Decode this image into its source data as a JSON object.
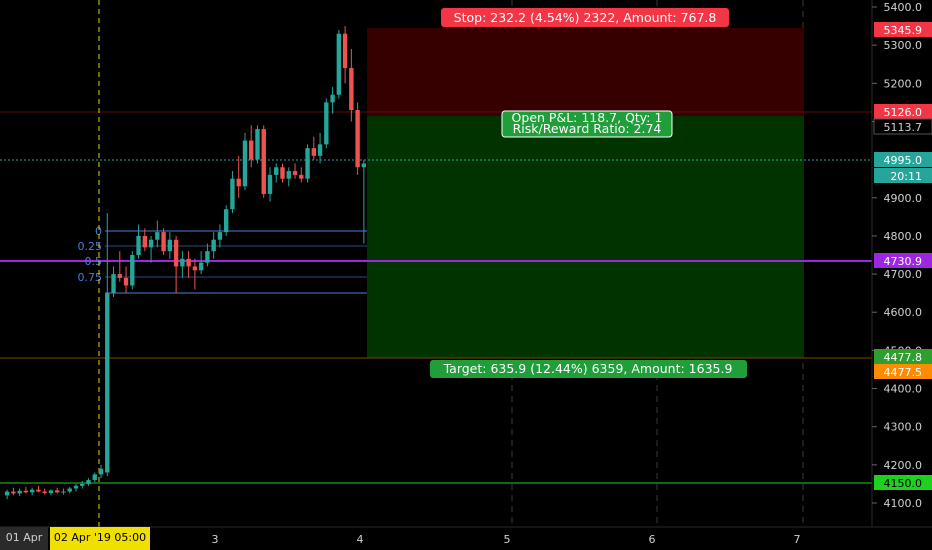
{
  "price_axis": {
    "ticks": [
      "5400.0",
      "5300.0",
      "5200.0",
      "5100.0",
      "4900.0",
      "4800.0",
      "4700.0",
      "4600.0",
      "4500.0",
      "4400.0",
      "4300.0",
      "4200.0",
      "4100.0"
    ],
    "tags": [
      {
        "label": "5345.9",
        "color": "#f23645",
        "text": "#ffffff"
      },
      {
        "label": "5126.0",
        "color": "#f23645",
        "text": "#ffffff"
      },
      {
        "label": "5113.7",
        "color": "#000000",
        "text": "#d0d0d0"
      },
      {
        "label": "4995.0",
        "color": "#26a69a",
        "text": "#ffffff"
      },
      {
        "label": "20:11",
        "color": "#26a69a",
        "text": "#ffffff"
      },
      {
        "label": "4730.9",
        "color": "#9c27e0",
        "text": "#ffffff"
      },
      {
        "label": "4477.8",
        "color": "#2e9e2e",
        "text": "#ffffff"
      },
      {
        "label": "4477.5",
        "color": "#ff8c00",
        "text": "#ffffff"
      },
      {
        "label": "4150.0",
        "color": "#1fd11f",
        "text": "#000000"
      }
    ]
  },
  "time_axis": {
    "ticks": [
      "3",
      "4",
      "5",
      "6",
      "7"
    ],
    "left_label": "01 Apr",
    "cursor_label": "02 Apr '19   05:00"
  },
  "position": {
    "stop_label": "Stop: 232.2 (4.54%) 2322, Amount: 767.8",
    "pnl_label": "Open P&L: 118.7, Qty: 1",
    "rr_label": "Risk/Reward Ratio: 2.74",
    "target_label": "Target: 635.9 (12.44%) 6359, Amount: 1635.9"
  },
  "fib": {
    "levels": [
      "0",
      "0.25",
      "0.5",
      "0.75"
    ],
    "color": "#4a7fd8"
  },
  "colors": {
    "up": "#26a69a",
    "down": "#ef5350",
    "stop_zone": "#3a0000",
    "target_zone": "#003a00",
    "purple": "#9c27e0",
    "green_line": "#1fd11f"
  },
  "candles": [
    [
      4120,
      4135,
      4110,
      4130
    ],
    [
      4130,
      4140,
      4120,
      4125
    ],
    [
      4125,
      4138,
      4118,
      4132
    ],
    [
      4132,
      4142,
      4125,
      4128
    ],
    [
      4128,
      4140,
      4120,
      4135
    ],
    [
      4135,
      4145,
      4128,
      4130
    ],
    [
      4130,
      4138,
      4122,
      4126
    ],
    [
      4126,
      4136,
      4120,
      4133
    ],
    [
      4133,
      4140,
      4125,
      4128
    ],
    [
      4128,
      4138,
      4122,
      4130
    ],
    [
      4130,
      4142,
      4125,
      4138
    ],
    [
      4138,
      4150,
      4130,
      4145
    ],
    [
      4145,
      4158,
      4138,
      4150
    ],
    [
      4150,
      4165,
      4145,
      4160
    ],
    [
      4160,
      4180,
      4155,
      4175
    ],
    [
      4175,
      4200,
      4165,
      4190
    ],
    [
      4180,
      4860,
      4170,
      4650
    ],
    [
      4650,
      4720,
      4640,
      4700
    ],
    [
      4700,
      4760,
      4680,
      4690
    ],
    [
      4690,
      4720,
      4650,
      4670
    ],
    [
      4670,
      4760,
      4660,
      4750
    ],
    [
      4750,
      4830,
      4740,
      4800
    ],
    [
      4800,
      4820,
      4760,
      4770
    ],
    [
      4770,
      4800,
      4730,
      4790
    ],
    [
      4790,
      4840,
      4770,
      4810
    ],
    [
      4810,
      4820,
      4750,
      4760
    ],
    [
      4760,
      4810,
      4740,
      4790
    ],
    [
      4790,
      4800,
      4650,
      4720
    ],
    [
      4720,
      4760,
      4690,
      4740
    ],
    [
      4740,
      4760,
      4690,
      4720
    ],
    [
      4720,
      4740,
      4660,
      4710
    ],
    [
      4710,
      4760,
      4700,
      4730
    ],
    [
      4730,
      4780,
      4720,
      4760
    ],
    [
      4760,
      4810,
      4740,
      4790
    ],
    [
      4790,
      4830,
      4770,
      4810
    ],
    [
      4810,
      4880,
      4800,
      4870
    ],
    [
      4870,
      4970,
      4860,
      4950
    ],
    [
      4950,
      5010,
      4900,
      4930
    ],
    [
      4930,
      5070,
      4920,
      5050
    ],
    [
      5050,
      5090,
      4980,
      5000
    ],
    [
      5000,
      5090,
      4990,
      5080
    ],
    [
      5080,
      5090,
      4900,
      4910
    ],
    [
      4910,
      4980,
      4890,
      4960
    ],
    [
      4960,
      4990,
      4940,
      4980
    ],
    [
      4980,
      4990,
      4940,
      4950
    ],
    [
      4950,
      4980,
      4930,
      4970
    ],
    [
      4970,
      4990,
      4950,
      4960
    ],
    [
      4960,
      4980,
      4940,
      4950
    ],
    [
      4950,
      5040,
      4940,
      5030
    ],
    [
      5030,
      5060,
      5000,
      5010
    ],
    [
      5010,
      5070,
      4990,
      5040
    ],
    [
      5040,
      5160,
      5030,
      5150
    ],
    [
      5150,
      5190,
      5120,
      5170
    ],
    [
      5170,
      5340,
      5160,
      5330
    ],
    [
      5330,
      5350,
      5200,
      5240
    ],
    [
      5240,
      5290,
      5100,
      5130
    ],
    [
      5130,
      5150,
      4960,
      4980
    ],
    [
      4980,
      5000,
      4780,
      4990
    ]
  ]
}
